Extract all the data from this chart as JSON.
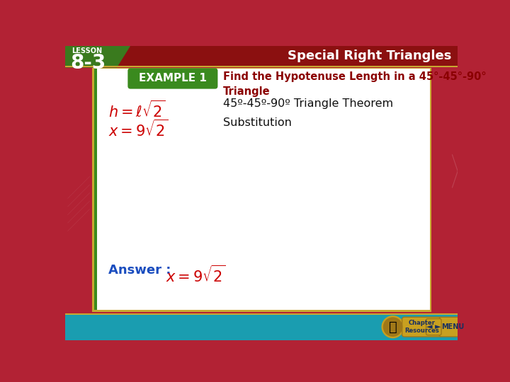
{
  "bg_color": "#b22234",
  "slide_bg": "#ffffff",
  "top_bar_color": "#8B0000",
  "lesson_label": "LESSON",
  "lesson_number": "8-3",
  "title_right": "Special Right Triangles",
  "example_label": "EXAMPLE 1",
  "example_bg": "#3a8a1e",
  "example_title": "Find the Hypotenuse Length in a 45°-45°-90°\nTriangle",
  "formula1_latex": "$h = \\ell\\sqrt{2}$",
  "formula2_latex": "$x = 9\\sqrt{2}$",
  "theorem_text": "45º-45º-90º Triangle Theorem",
  "substitution_text": "Substitution",
  "answer_label": "Answer :",
  "answer_latex": "$x = 9\\sqrt{2}$",
  "formula_color": "#cc0000",
  "example_title_color": "#8B0000",
  "answer_label_color": "#1a4dbf",
  "answer_formula_color": "#cc0000",
  "body_text_color": "#111111",
  "teal_bar": "#1a9db0",
  "gold_border": "#c8a830",
  "top_lesson_bg": "#3a7a1e",
  "top_header_bg": "#8B0000"
}
